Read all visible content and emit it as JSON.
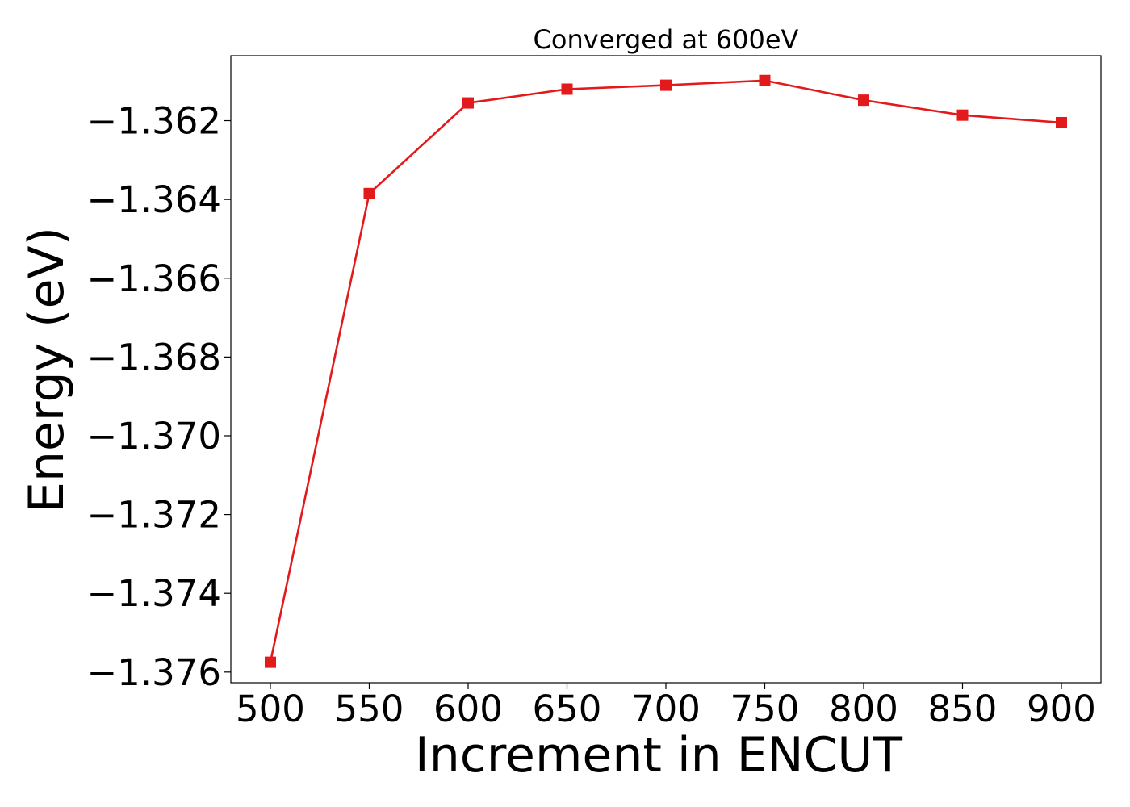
{
  "chart_data": {
    "type": "line",
    "title": "Converged at 600eV",
    "xlabel": "Increment in ENCUT",
    "ylabel": "Energy (eV)",
    "x": [
      500,
      550,
      600,
      650,
      700,
      750,
      800,
      850,
      900
    ],
    "series": [
      {
        "values": [
          -1.37575,
          -1.36385,
          -1.36155,
          -1.3612,
          -1.3611,
          -1.36098,
          -1.36148,
          -1.36186,
          -1.36205
        ],
        "color": "#e31a1c",
        "marker": "square"
      }
    ],
    "xticks": [
      500,
      550,
      600,
      650,
      700,
      750,
      800,
      850,
      900
    ],
    "xtick_labels": [
      "500",
      "550",
      "600",
      "650",
      "700",
      "750",
      "800",
      "850",
      "900"
    ],
    "yticks": [
      -1.362,
      -1.364,
      -1.366,
      -1.368,
      -1.37,
      -1.372,
      -1.374,
      -1.376
    ],
    "ytick_labels": [
      "−1.362",
      "−1.364",
      "−1.366",
      "−1.368",
      "−1.370",
      "−1.372",
      "−1.374",
      "−1.376"
    ],
    "xlim": [
      480,
      920
    ],
    "ylim": [
      -1.37627,
      -1.36035
    ],
    "grid": false,
    "legend": "none"
  }
}
